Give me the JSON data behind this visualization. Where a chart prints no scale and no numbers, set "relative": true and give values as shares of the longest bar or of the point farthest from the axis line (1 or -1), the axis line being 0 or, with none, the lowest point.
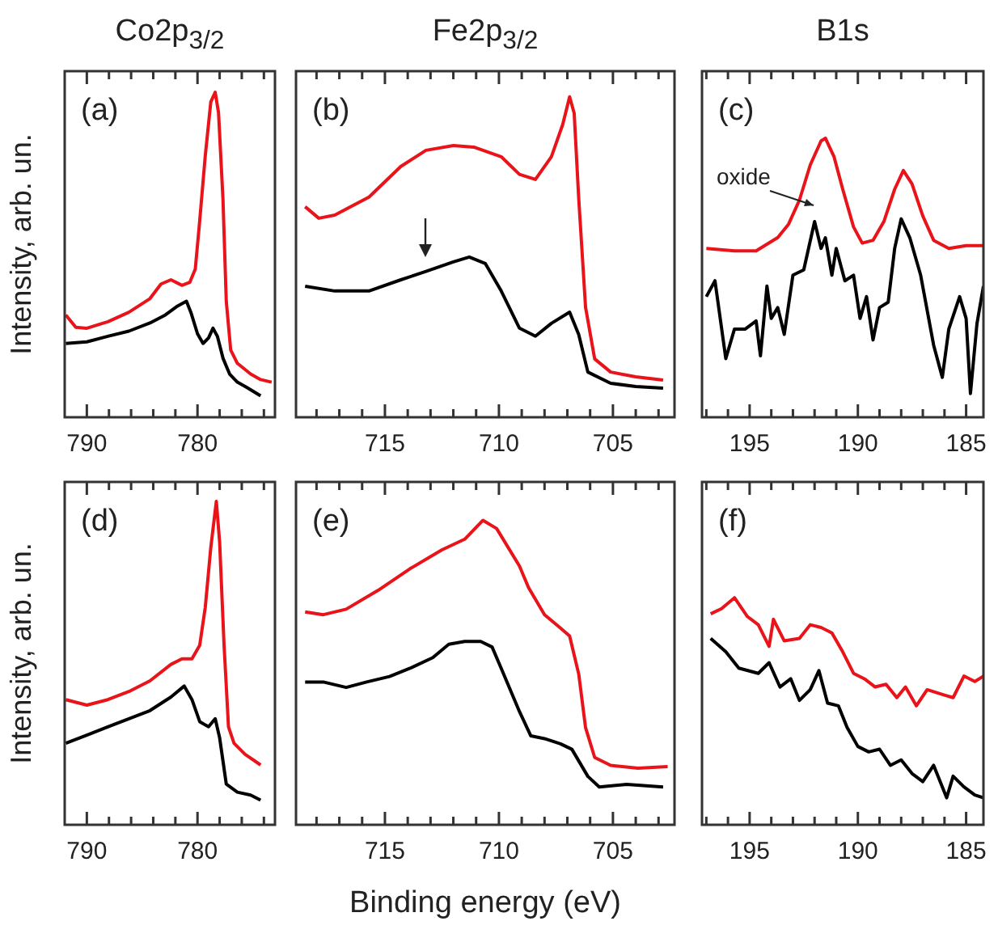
{
  "chart_data": [
    {
      "type": "line",
      "title": "Co2p$_{3/2}$",
      "ylabel": "Intensity, arb. un.",
      "relative": true,
      "marker": "none",
      "line_style": "solid",
      "annotations": [
        "(a)"
      ],
      "xlim": [
        792,
        773
      ],
      "xticks": [
        790,
        {
          "value": 788,
          "label": null
        },
        {
          "value": 786,
          "label": null
        },
        {
          "value": 784,
          "label": null
        },
        {
          "value": 782,
          "label": null
        },
        780,
        {
          "value": 778,
          "label": null
        },
        {
          "value": 776,
          "label": null
        },
        {
          "value": 774,
          "label": null
        }
      ],
      "series": [
        {
          "color": "#e8141a",
          "x": [
            791.9,
            791.0,
            790,
            788.1,
            786.2,
            784.3,
            783.3,
            782.4,
            781.4,
            780.7,
            780.2,
            779.8,
            779.3,
            778.8,
            778.4,
            778.1,
            777.7,
            777.4,
            777.0,
            776.4,
            775.2,
            774.3,
            773.3
          ],
          "values": [
            0.315,
            0.277,
            0.274,
            0.294,
            0.323,
            0.365,
            0.41,
            0.423,
            0.406,
            0.415,
            0.456,
            0.605,
            0.804,
            0.97,
            1,
            0.937,
            0.672,
            0.357,
            0.207,
            0.166,
            0.133,
            0.116,
            0.108
          ]
        },
        {
          "color": "#000000",
          "x": [
            791.9,
            790,
            788.1,
            786.2,
            784.3,
            782.9,
            781.9,
            781.0,
            780.6,
            780,
            779.5,
            779.0,
            778.6,
            778.2,
            777.7,
            777.1,
            776.4,
            775.5,
            774.3
          ],
          "values": [
            0.227,
            0.232,
            0.249,
            0.265,
            0.29,
            0.315,
            0.34,
            0.357,
            0.323,
            0.257,
            0.227,
            0.244,
            0.274,
            0.249,
            0.182,
            0.133,
            0.108,
            0.091,
            0.066
          ]
        }
      ]
    },
    {
      "type": "line",
      "title": "Fe2p$_{3/2}$",
      "relative": true,
      "marker": "none",
      "line_style": "solid",
      "annotations": [
        "(b)"
      ],
      "xlim": [
        718.9,
        702.3
      ],
      "xticks": [
        {
          "value": 718,
          "label": null
        },
        {
          "value": 717,
          "label": null
        },
        {
          "value": 716,
          "label": null
        },
        715,
        {
          "value": 714,
          "label": null
        },
        {
          "value": 713,
          "label": null
        },
        {
          "value": 712,
          "label": null
        },
        {
          "value": 711,
          "label": null
        },
        710,
        {
          "value": 709,
          "label": null
        },
        {
          "value": 708,
          "label": null
        },
        {
          "value": 707,
          "label": null
        },
        {
          "value": 706,
          "label": null
        },
        705,
        {
          "value": 704,
          "label": null
        },
        {
          "value": 703,
          "label": null
        }
      ],
      "series": [
        {
          "color": "#e8141a",
          "x": [
            718.5,
            717.9,
            717.2,
            715.7,
            714.3,
            713.2,
            712.0,
            711.1,
            709.9,
            709.1,
            708.4,
            707.7,
            707.2,
            706.9,
            706.7,
            706.5,
            706.2,
            705.8,
            705.1,
            704.0,
            702.8
          ],
          "values": [
            0.657,
            0.621,
            0.631,
            0.687,
            0.783,
            0.833,
            0.848,
            0.843,
            0.813,
            0.758,
            0.742,
            0.813,
            0.914,
            1,
            0.949,
            0.682,
            0.343,
            0.182,
            0.141,
            0.126,
            0.116
          ]
        },
        {
          "color": "#000000",
          "x": [
            718.5,
            717.2,
            715.7,
            714.3,
            713.2,
            712.0,
            711.3,
            710.6,
            709.9,
            709.1,
            708.4,
            707.7,
            706.9,
            706.5,
            706.1,
            705.1,
            704.0,
            702.8
          ],
          "values": [
            0.409,
            0.394,
            0.394,
            0.429,
            0.455,
            0.485,
            0.5,
            0.48,
            0.394,
            0.278,
            0.253,
            0.293,
            0.328,
            0.258,
            0.141,
            0.106,
            0.096,
            0.091
          ]
        }
      ]
    },
    {
      "type": "line",
      "title": "B1s",
      "relative": true,
      "marker": "none",
      "line_style": "solid",
      "annotations": [
        "(c)",
        "oxide"
      ],
      "xlim": [
        197.2,
        184.2
      ],
      "xticks": [
        {
          "value": 197,
          "label": null
        },
        {
          "value": 196,
          "label": null
        },
        195,
        {
          "value": 194,
          "label": null
        },
        {
          "value": 193,
          "label": null
        },
        {
          "value": 192,
          "label": null
        },
        {
          "value": 191,
          "label": null
        },
        190,
        {
          "value": 189,
          "label": null
        },
        {
          "value": 188,
          "label": null
        },
        {
          "value": 187,
          "label": null
        },
        {
          "value": 186,
          "label": null
        },
        185
      ],
      "series": [
        {
          "color": "#e8141a",
          "x": [
            197.0,
            195.7,
            194.7,
            193.7,
            193.2,
            192.7,
            192.2,
            191.7,
            191.5,
            191.1,
            190.7,
            190.2,
            189.8,
            189.3,
            188.8,
            188.3,
            187.9,
            187.5,
            187.0,
            186.5,
            185.8,
            185.0,
            184.2
          ],
          "values": [
            0.605,
            0.596,
            0.596,
            0.644,
            0.692,
            0.778,
            0.904,
            0.99,
            1,
            0.933,
            0.817,
            0.682,
            0.624,
            0.634,
            0.701,
            0.817,
            0.884,
            0.836,
            0.721,
            0.634,
            0.605,
            0.615,
            0.615
          ]
        },
        {
          "color": "#000000",
          "x": [
            197.0,
            196.6,
            196.1,
            195.7,
            195.2,
            194.7,
            194.5,
            194.2,
            194.0,
            193.7,
            193.4,
            193.0,
            192.5,
            192.0,
            191.7,
            191.5,
            191.2,
            191.0,
            190.6,
            190.2,
            189.9,
            189.6,
            189.3,
            189.0,
            188.6,
            188.3,
            188.0,
            187.6,
            187.1,
            186.5,
            186.1,
            185.8,
            185.3,
            185.0,
            184.8,
            184.5,
            184.2
          ],
          "values": [
            0.432,
            0.489,
            0.21,
            0.316,
            0.316,
            0.345,
            0.22,
            0.47,
            0.354,
            0.393,
            0.297,
            0.509,
            0.528,
            0.701,
            0.605,
            0.643,
            0.509,
            0.605,
            0.489,
            0.509,
            0.354,
            0.432,
            0.277,
            0.393,
            0.412,
            0.605,
            0.711,
            0.643,
            0.509,
            0.258,
            0.143,
            0.316,
            0.432,
            0.354,
            0.085,
            0.335,
            0.47
          ]
        }
      ]
    },
    {
      "type": "line",
      "ylabel": "Intensity, arb. un.",
      "relative": true,
      "marker": "none",
      "line_style": "solid",
      "annotations": [
        "(d)"
      ],
      "xlim": [
        792,
        773
      ],
      "xticks": [
        790,
        {
          "value": 788,
          "label": null
        },
        {
          "value": 786,
          "label": null
        },
        {
          "value": 784,
          "label": null
        },
        {
          "value": 782,
          "label": null
        },
        780,
        {
          "value": 778,
          "label": null
        },
        {
          "value": 776,
          "label": null
        },
        {
          "value": 774,
          "label": null
        }
      ],
      "series": [
        {
          "color": "#e8141a",
          "x": [
            791.9,
            790,
            788.1,
            786.2,
            784.3,
            782.4,
            781.4,
            780.5,
            779.8,
            779.3,
            778.8,
            778.3,
            778.0,
            777.6,
            777.2,
            776.7,
            775.7,
            774.3
          ],
          "values": [
            0.387,
            0.37,
            0.387,
            0.412,
            0.445,
            0.496,
            0.513,
            0.513,
            0.555,
            0.672,
            0.857,
            1,
            0.874,
            0.555,
            0.303,
            0.252,
            0.218,
            0.185
          ]
        },
        {
          "color": "#000000",
          "x": [
            791.9,
            790,
            788.1,
            786.2,
            784.3,
            782.4,
            781.2,
            780.5,
            779.8,
            779.0,
            778.4,
            778.0,
            777.4,
            776.4,
            775.2,
            774.3
          ],
          "values": [
            0.252,
            0.277,
            0.303,
            0.328,
            0.353,
            0.395,
            0.429,
            0.387,
            0.319,
            0.303,
            0.328,
            0.269,
            0.126,
            0.101,
            0.092,
            0.076
          ]
        }
      ]
    },
    {
      "type": "line",
      "xlabel": "Binding energy (eV)",
      "relative": true,
      "marker": "none",
      "line_style": "solid",
      "annotations": [
        "(e)"
      ],
      "xlim": [
        718.9,
        702.3
      ],
      "xticks": [
        {
          "value": 718,
          "label": null
        },
        {
          "value": 717,
          "label": null
        },
        {
          "value": 716,
          "label": null
        },
        715,
        {
          "value": 714,
          "label": null
        },
        {
          "value": 713,
          "label": null
        },
        {
          "value": 712,
          "label": null
        },
        {
          "value": 711,
          "label": null
        },
        710,
        {
          "value": 709,
          "label": null
        },
        {
          "value": 708,
          "label": null
        },
        {
          "value": 707,
          "label": null
        },
        {
          "value": 706,
          "label": null
        },
        705,
        {
          "value": 704,
          "label": null
        },
        {
          "value": 703,
          "label": null
        }
      ],
      "series": [
        {
          "color": "#e8141a",
          "x": [
            718.5,
            717.7,
            716.7,
            715.3,
            713.9,
            712.5,
            711.5,
            710.7,
            710.1,
            709.1,
            708.7,
            708.0,
            707.3,
            706.9,
            706.5,
            706.2,
            705.8,
            705.1,
            703.9,
            702.6
          ],
          "values": [
            0.699,
            0.69,
            0.708,
            0.77,
            0.841,
            0.903,
            0.938,
            1,
            0.973,
            0.85,
            0.779,
            0.69,
            0.646,
            0.62,
            0.495,
            0.319,
            0.221,
            0.195,
            0.186,
            0.191
          ]
        },
        {
          "color": "#000000",
          "x": [
            718.5,
            717.7,
            716.7,
            715.8,
            714.8,
            713.9,
            712.9,
            712.2,
            711.5,
            710.8,
            710.3,
            709.9,
            709.1,
            708.6,
            708.0,
            707.3,
            706.8,
            706.1,
            705.6,
            704.4,
            702.8
          ],
          "values": [
            0.469,
            0.469,
            0.451,
            0.469,
            0.487,
            0.514,
            0.549,
            0.593,
            0.602,
            0.602,
            0.584,
            0.514,
            0.372,
            0.292,
            0.283,
            0.266,
            0.248,
            0.159,
            0.124,
            0.133,
            0.124
          ]
        }
      ]
    },
    {
      "type": "line",
      "relative": true,
      "marker": "none",
      "line_style": "solid",
      "annotations": [
        "(f)"
      ],
      "xlim": [
        197.2,
        184.2
      ],
      "xticks": [
        {
          "value": 197,
          "label": null
        },
        {
          "value": 196,
          "label": null
        },
        195,
        {
          "value": 194,
          "label": null
        },
        {
          "value": 193,
          "label": null
        },
        {
          "value": 192,
          "label": null
        },
        {
          "value": 191,
          "label": null
        },
        190,
        {
          "value": 189,
          "label": null
        },
        {
          "value": 188,
          "label": null
        },
        {
          "value": 187,
          "label": null
        },
        {
          "value": 186,
          "label": null
        },
        185
      ],
      "series": [
        {
          "color": "#e8141a",
          "x": [
            196.8,
            196.3,
            195.7,
            195.1,
            194.6,
            194.1,
            193.9,
            193.4,
            192.7,
            192.2,
            191.7,
            191.2,
            190.7,
            190.2,
            189.7,
            189.2,
            188.7,
            188.2,
            187.8,
            187.3,
            186.8,
            186.0,
            185.6,
            185.1,
            184.6,
            184.2
          ],
          "values": [
            0.929,
            0.952,
            1,
            0.917,
            0.881,
            0.786,
            0.905,
            0.81,
            0.821,
            0.881,
            0.869,
            0.845,
            0.762,
            0.667,
            0.643,
            0.607,
            0.619,
            0.56,
            0.607,
            0.524,
            0.595,
            0.571,
            0.56,
            0.655,
            0.631,
            0.655
          ]
        },
        {
          "color": "#000000",
          "x": [
            196.8,
            196.1,
            195.5,
            194.6,
            194.1,
            193.6,
            193.1,
            192.7,
            192.2,
            191.8,
            191.4,
            190.9,
            190.5,
            190.0,
            189.5,
            189.0,
            188.5,
            188.0,
            187.5,
            187.0,
            186.5,
            185.9,
            185.6,
            185.1,
            184.6,
            184.2
          ],
          "values": [
            0.821,
            0.762,
            0.69,
            0.667,
            0.714,
            0.607,
            0.643,
            0.548,
            0.595,
            0.679,
            0.536,
            0.524,
            0.429,
            0.345,
            0.321,
            0.333,
            0.262,
            0.286,
            0.226,
            0.19,
            0.262,
            0.119,
            0.214,
            0.167,
            0.131,
            0.119
          ]
        }
      ]
    }
  ]
}
